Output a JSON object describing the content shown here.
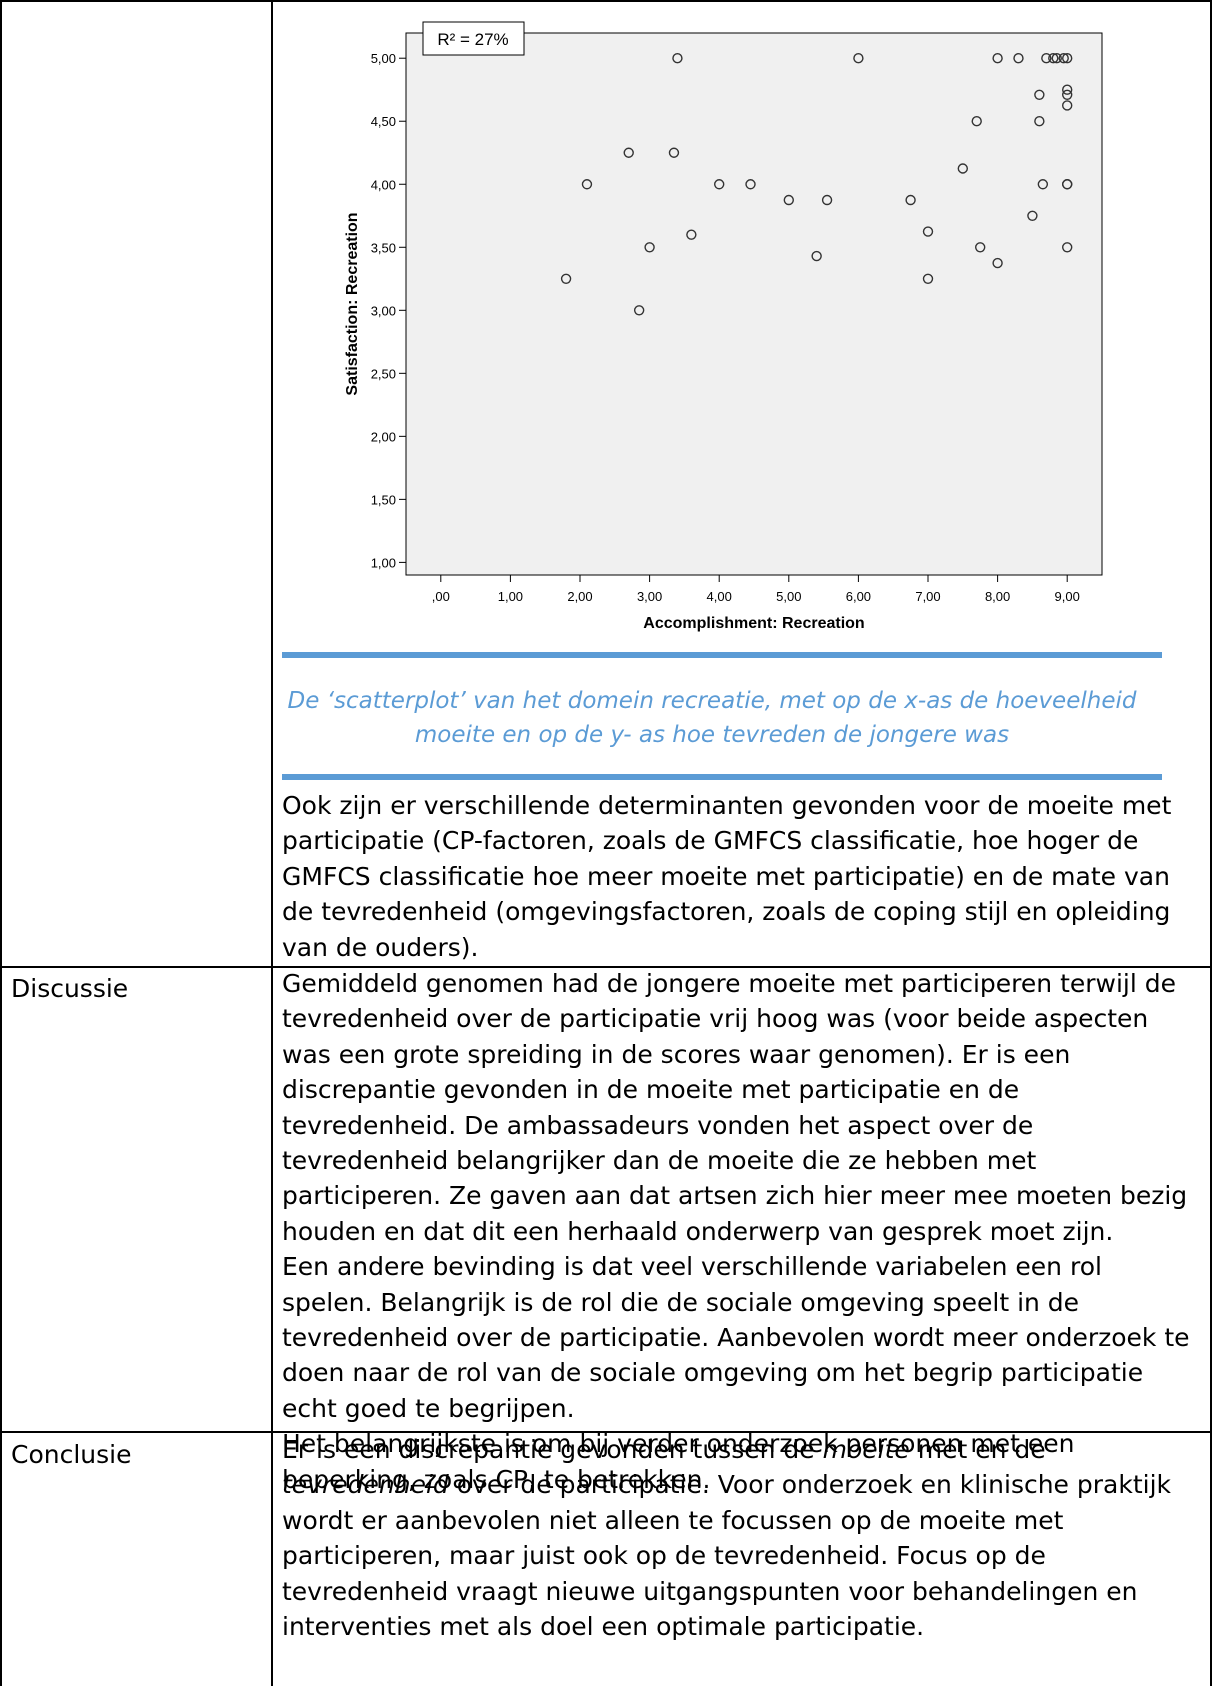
{
  "chart_data": {
    "type": "scatter",
    "xlabel": "Accomplishment: Recreation",
    "ylabel": "Satisfaction: Recreation",
    "annotation": "R² = 27%",
    "xlim": [
      -0.5,
      9.5
    ],
    "ylim": [
      0.9,
      5.2
    ],
    "x_ticks": [
      0,
      1,
      2,
      3,
      4,
      5,
      6,
      7,
      8,
      9
    ],
    "x_tick_labels": [
      ",00",
      "1,00",
      "2,00",
      "3,00",
      "4,00",
      "5,00",
      "6,00",
      "7,00",
      "8,00",
      "9,00"
    ],
    "y_ticks": [
      1,
      1.5,
      2,
      2.5,
      3,
      3.5,
      4,
      4.5,
      5
    ],
    "y_tick_labels": [
      "1,00",
      "1,50",
      "2,00",
      "2,50",
      "3,00",
      "3,50",
      "4,00",
      "4,50",
      "5,00"
    ],
    "grid": false,
    "points": [
      [
        1.8,
        3.25
      ],
      [
        2.1,
        4.0
      ],
      [
        2.7,
        4.25
      ],
      [
        2.85,
        3.0
      ],
      [
        3.0,
        3.5
      ],
      [
        3.35,
        4.25
      ],
      [
        3.4,
        5.0
      ],
      [
        3.6,
        3.6
      ],
      [
        4.0,
        4.0
      ],
      [
        4.45,
        4.0
      ],
      [
        5.0,
        3.875
      ],
      [
        5.4,
        3.43
      ],
      [
        5.55,
        3.875
      ],
      [
        6.0,
        5.0
      ],
      [
        6.75,
        3.875
      ],
      [
        7.0,
        3.625
      ],
      [
        7.0,
        3.25
      ],
      [
        7.5,
        4.125
      ],
      [
        7.7,
        4.5
      ],
      [
        7.75,
        3.5
      ],
      [
        8.0,
        5.0
      ],
      [
        8.0,
        3.375
      ],
      [
        8.3,
        5.0
      ],
      [
        8.5,
        3.75
      ],
      [
        8.6,
        4.5
      ],
      [
        8.6,
        4.71
      ],
      [
        8.65,
        4.0
      ],
      [
        8.7,
        5.0
      ],
      [
        8.8,
        5.0
      ],
      [
        8.85,
        5.0
      ],
      [
        8.95,
        5.0
      ],
      [
        9.0,
        5.0
      ],
      [
        9.0,
        4.75
      ],
      [
        9.0,
        4.71
      ],
      [
        9.0,
        4.625
      ],
      [
        9.0,
        4.0
      ],
      [
        9.0,
        3.5
      ],
      [
        9.0,
        4.0
      ]
    ]
  },
  "caption": "De ‘scatterplot’ van het domein recreatie, met op de x-as de hoeveelheid moeite en op de y- as hoe tevreden de jongere was",
  "rows": {
    "first": {
      "text": "Ook zijn er verschillende determinanten gevonden voor de moeite met participatie (CP-factoren, zoals de GMFCS classificatie, hoe hoger de GMFCS classificatie hoe meer moeite met participatie) en de mate van de tevredenheid (omgevingsfactoren, zoals de coping stijl en opleiding van de ouders)."
    },
    "discussie": {
      "label": "Discussie",
      "p1": "Gemiddeld genomen had de jongere moeite met participeren terwijl de tevredenheid over de participatie vrij hoog was (voor beide aspecten was een grote spreiding in de scores waar genomen). Er is een discrepantie gevonden in de moeite met participatie en de tevredenheid. De ambassadeurs vonden het aspect over de tevredenheid belangrijker dan de moeite die ze hebben met participeren. Ze gaven aan dat artsen zich hier meer mee moeten bezig houden en dat dit een herhaald onderwerp van gesprek moet zijn.",
      "p2": "Een andere bevinding is dat veel verschillende variabelen een rol spelen. Belangrijk is de rol die de sociale omgeving speelt in de tevredenheid over de participatie. Aanbevolen wordt meer onderzoek te doen naar de rol van de sociale omgeving om het begrip participatie echt goed te begrijpen.",
      "p3": "Het belangrijkste is om bij verder onderzoek personen met een beperking, zoals CP, te betrekken."
    },
    "conclusie": {
      "label": "Conclusie",
      "t1": "Er is een discrepantie gevonden tussen de ",
      "em1": "moeite",
      "t2": " met en de ",
      "em2": "tevredenheid",
      "t3": " over de participatie. Voor onderzoek en klinische praktijk wordt er aanbevolen niet alleen te focussen op de moeite met participeren, maar juist ook op de tevredenheid. Focus op de tevredenheid vraagt nieuwe uitgangspunten voor behandelingen en interventies met als doel een optimale participatie."
    }
  }
}
